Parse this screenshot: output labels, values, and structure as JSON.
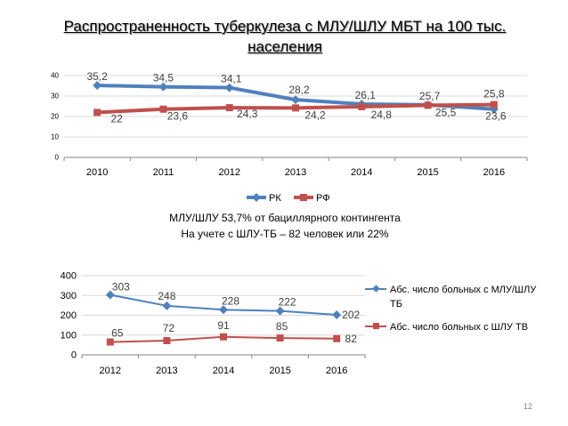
{
  "slide": {
    "title": "Распространенность туберкулеза с МЛУ/ШЛУ МБТ на 100 тыс. населения",
    "caption_line1": "МЛУ/ШЛУ 53,7% от бациллярного контингента",
    "caption_line2": "На учете с ШЛУ-ТБ – 82 человек или 22%",
    "page_number": "12"
  },
  "colors": {
    "blue": "#4f81bd",
    "red": "#c0504d",
    "grid": "#d9d9d9",
    "axis": "#868686"
  },
  "chart_data": [
    {
      "type": "line",
      "title": "",
      "categories": [
        "2010",
        "2011",
        "2012",
        "2013",
        "2014",
        "2015",
        "2016"
      ],
      "ylim": [
        0,
        40
      ],
      "yticks": [
        0,
        10,
        20,
        30,
        40
      ],
      "grid": true,
      "legend": "bottom",
      "series": [
        {
          "name": "РК",
          "values": [
            35.2,
            34.5,
            34.1,
            28.2,
            26.1,
            25.7,
            23.6
          ],
          "labels": [
            "35,2",
            "34,5",
            "34,1",
            "28,2",
            "26,1",
            "25,7",
            "23,6"
          ]
        },
        {
          "name": "РФ",
          "values": [
            22,
            23.6,
            24.3,
            24.2,
            24.8,
            25.5,
            25.8
          ],
          "labels": [
            "22",
            "23,6",
            "24,3",
            "24,2",
            "24,8",
            "25,5",
            "25,8"
          ]
        }
      ]
    },
    {
      "type": "line",
      "title": "",
      "categories": [
        "2012",
        "2013",
        "2014",
        "2015",
        "2016"
      ],
      "ylim": [
        0,
        400
      ],
      "yticks": [
        0,
        100,
        200,
        300,
        400
      ],
      "grid": true,
      "legend": "right",
      "series": [
        {
          "name": "Абс. число больных с МЛУ/ШЛУ ТБ",
          "values": [
            303,
            248,
            228,
            222,
            202
          ],
          "labels": [
            "303",
            "248",
            "228",
            "222",
            "202"
          ]
        },
        {
          "name": "Абс. число больных с ШЛУ ТВ",
          "values": [
            65,
            72,
            91,
            85,
            82
          ],
          "labels": [
            "65",
            "72",
            "91",
            "85",
            "82"
          ]
        }
      ]
    }
  ]
}
